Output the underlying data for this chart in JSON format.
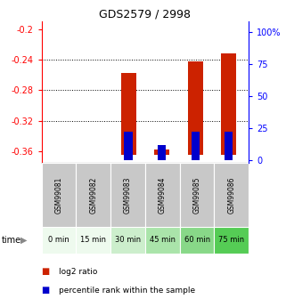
{
  "title": "GDS2579 / 2998",
  "samples": [
    "GSM99081",
    "GSM99082",
    "GSM99083",
    "GSM99084",
    "GSM99085",
    "GSM99086"
  ],
  "time_labels": [
    "0 min",
    "15 min",
    "30 min",
    "45 min",
    "60 min",
    "75 min"
  ],
  "time_bg_colors": [
    "#eefaee",
    "#eefaee",
    "#cceecc",
    "#aae4aa",
    "#88d888",
    "#55cc55"
  ],
  "log2_ratio": [
    null,
    null,
    -0.258,
    -0.358,
    -0.242,
    -0.232
  ],
  "log2_baseline": -0.365,
  "percentile_rank": [
    null,
    null,
    22,
    12,
    22,
    22
  ],
  "ylim_left": [
    -0.375,
    -0.19
  ],
  "ylim_right": [
    -2.08,
    108
  ],
  "yticks_left": [
    -0.36,
    -0.32,
    -0.28,
    -0.24,
    -0.2
  ],
  "yticks_right": [
    0,
    25,
    50,
    75,
    100
  ],
  "left_tick_labels": [
    "-0.36",
    "-0.32",
    "-0.28",
    "-0.24",
    "-0.2"
  ],
  "right_tick_labels": [
    "0",
    "25",
    "50",
    "75",
    "100%"
  ],
  "bar_color_red": "#cc2200",
  "bar_color_blue": "#0000cc",
  "sample_bg_gray": "#c8c8c8",
  "bar_width": 0.45,
  "blue_bar_width": 0.25
}
